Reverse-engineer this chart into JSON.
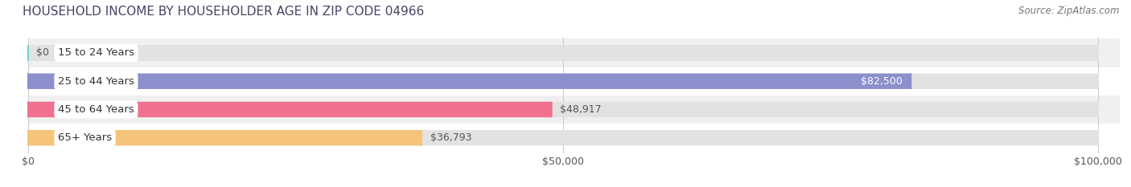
{
  "title": "HOUSEHOLD INCOME BY HOUSEHOLDER AGE IN ZIP CODE 04966",
  "source": "Source: ZipAtlas.com",
  "categories": [
    "15 to 24 Years",
    "25 to 44 Years",
    "45 to 64 Years",
    "65+ Years"
  ],
  "values": [
    0,
    82500,
    48917,
    36793
  ],
  "bar_colors": [
    "#72cece",
    "#8b8fcc",
    "#f07090",
    "#f5c47a"
  ],
  "bar_labels": [
    "$0",
    "$82,500",
    "$48,917",
    "$36,793"
  ],
  "label_inside": [
    false,
    true,
    false,
    false
  ],
  "xlim": [
    0,
    100000
  ],
  "xticks": [
    0,
    50000,
    100000
  ],
  "xtick_labels": [
    "$0",
    "$50,000",
    "$100,000"
  ],
  "row_colors": [
    "#f0f0f0",
    "#ffffff",
    "#f0f0f0",
    "#ffffff"
  ],
  "bar_bg_color": "#e2e2e2",
  "title_fontsize": 11,
  "source_fontsize": 8.5,
  "tick_fontsize": 9,
  "label_fontsize": 9,
  "cat_fontsize": 9.5
}
